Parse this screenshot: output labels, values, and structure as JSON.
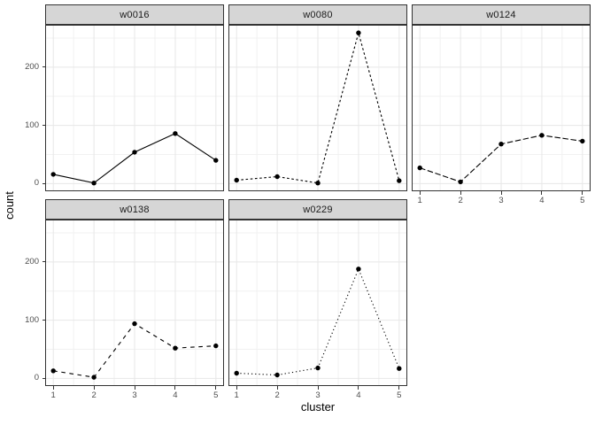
{
  "axes": {
    "x_title": "cluster",
    "y_title": "count",
    "x_tick_labels": [
      "1",
      "2",
      "3",
      "4",
      "5"
    ],
    "y_tick_labels": [
      "0",
      "100",
      "200"
    ]
  },
  "style": {
    "background": "#ffffff",
    "strip_fill": "#d6d6d6",
    "strip_text_color": "#1a1a1a",
    "border_color": "#333333",
    "grid_major_color": "#e7e7e7",
    "grid_minor_color": "#f1f1f1",
    "data_color": "#000000",
    "axis_text_color": "#4d4d4d",
    "tick_color": "#333333"
  },
  "chart_data": {
    "type": "line",
    "title": "",
    "xlabel": "cluster",
    "ylabel": "count",
    "facet_columns": 3,
    "legend": "none",
    "grid": true,
    "x": [
      1,
      2,
      3,
      4,
      5
    ],
    "xlim": [
      0.8,
      5.2
    ],
    "ylim": [
      -13,
      273
    ],
    "y_major_gridlines": [
      0,
      100,
      200
    ],
    "y_minor_gridlines": [
      50,
      150,
      250
    ],
    "x_major_gridlines": [
      1,
      2,
      3,
      4,
      5
    ],
    "x_minor_gridlines": [
      1.5,
      2.5,
      3.5,
      4.5
    ],
    "series": [
      {
        "name": "w0016",
        "linetype": "solid",
        "values": [
          16,
          1,
          54,
          86,
          40
        ]
      },
      {
        "name": "w0080",
        "linetype": "dashed-short",
        "values": [
          6,
          12,
          1,
          259,
          5
        ]
      },
      {
        "name": "w0124",
        "linetype": "dashed-long",
        "values": [
          27,
          3,
          68,
          83,
          73
        ]
      },
      {
        "name": "w0138",
        "linetype": "dashed-spaced",
        "values": [
          13,
          2,
          94,
          52,
          56
        ]
      },
      {
        "name": "w0229",
        "linetype": "dotted",
        "values": [
          9,
          6,
          18,
          188,
          17
        ]
      }
    ]
  }
}
